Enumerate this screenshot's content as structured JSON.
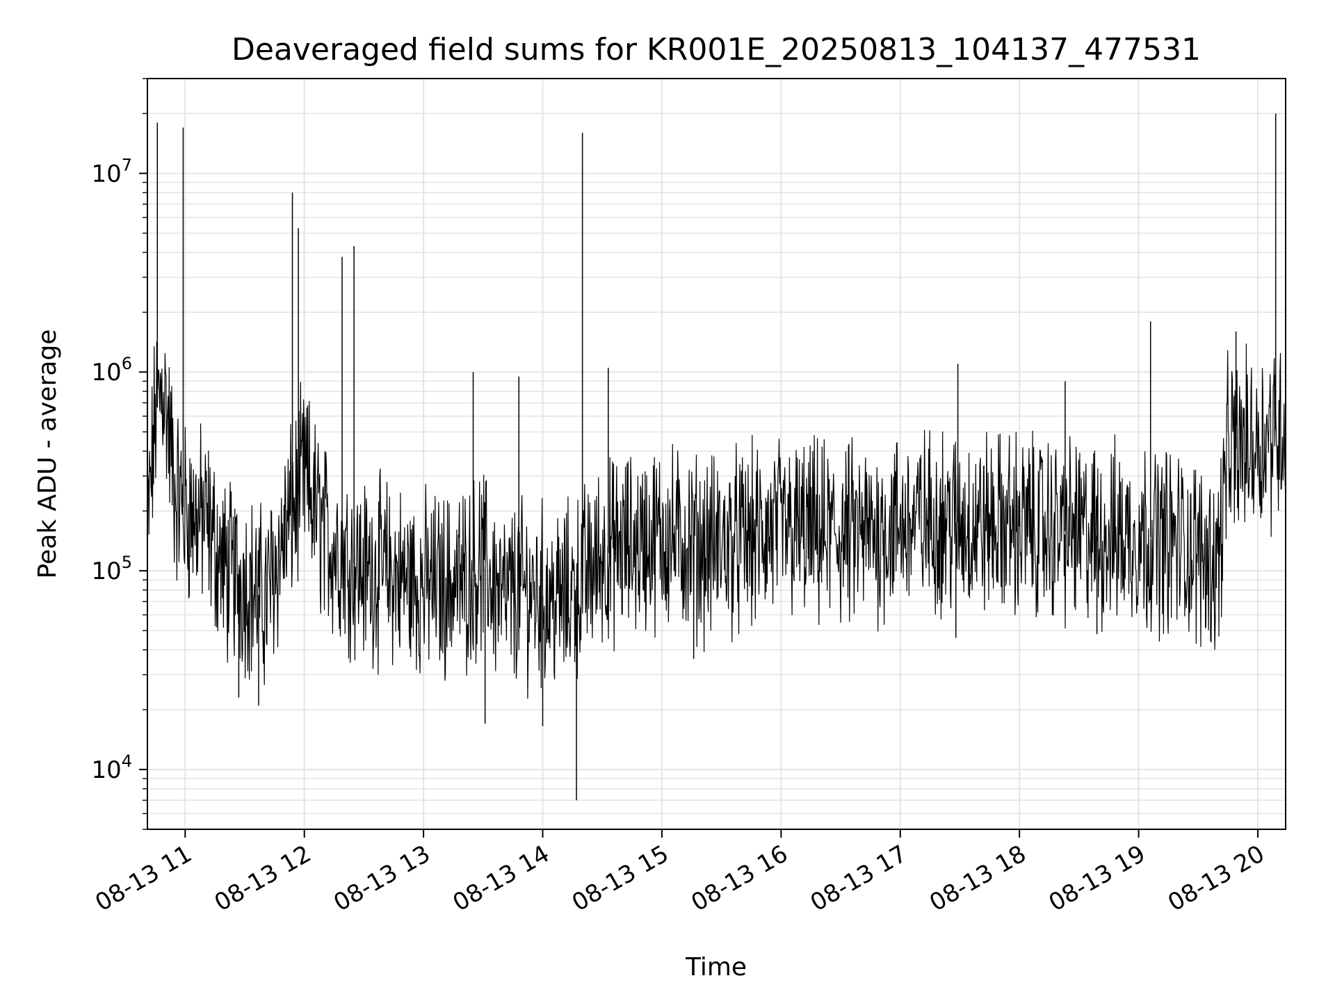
{
  "chart_data": {
    "type": "line",
    "title": "Deaveraged field sums for KR001E_20250813_104137_477531",
    "xlabel": "Time",
    "ylabel": "Peak ADU - average",
    "yscale": "log",
    "ylim": [
      5000,
      30000000
    ],
    "xlim": [
      "2025-08-13 10:41",
      "2025-08-13 20:14"
    ],
    "x_ticks": [
      "08-13 11",
      "08-13 12",
      "08-13 13",
      "08-13 14",
      "08-13 15",
      "08-13 16",
      "08-13 17",
      "08-13 18",
      "08-13 19",
      "08-13 20"
    ],
    "y_ticks": [
      {
        "base": "10",
        "exp": "4",
        "value": 10000
      },
      {
        "base": "10",
        "exp": "5",
        "value": 100000
      },
      {
        "base": "10",
        "exp": "6",
        "value": 1000000
      },
      {
        "base": "10",
        "exp": "7",
        "value": 10000000
      }
    ],
    "grid": true,
    "line_color": "#000000",
    "series": [
      {
        "points": [
          [
            "2025-08-13 10:41",
            150000
          ],
          [
            "2025-08-13 10:45",
            600000
          ],
          [
            "2025-08-13 10:49",
            900000
          ],
          [
            "2025-08-13 10:55",
            250000
          ],
          [
            "2025-08-13 11:00",
            200000
          ],
          [
            "2025-08-13 11:10",
            180000
          ],
          [
            "2025-08-13 11:20",
            100000
          ],
          [
            "2025-08-13 11:30",
            90000
          ],
          [
            "2025-08-13 11:40",
            70000
          ],
          [
            "2025-08-13 11:50",
            150000
          ],
          [
            "2025-08-13 12:00",
            300000
          ],
          [
            "2025-08-13 12:10",
            150000
          ],
          [
            "2025-08-13 12:20",
            120000
          ],
          [
            "2025-08-13 12:30",
            100000
          ],
          [
            "2025-08-13 12:40",
            100000
          ],
          [
            "2025-08-13 12:50",
            90000
          ],
          [
            "2025-08-13 13:00",
            85000
          ],
          [
            "2025-08-13 13:10",
            85000
          ],
          [
            "2025-08-13 13:20",
            90000
          ],
          [
            "2025-08-13 13:30",
            110000
          ],
          [
            "2025-08-13 13:40",
            70000
          ],
          [
            "2025-08-13 13:50",
            80000
          ],
          [
            "2025-08-13 14:00",
            75000
          ],
          [
            "2025-08-13 14:10",
            70000
          ],
          [
            "2025-08-13 14:20",
            90000
          ],
          [
            "2025-08-13 14:30",
            120000
          ],
          [
            "2025-08-13 14:40",
            130000
          ],
          [
            "2025-08-13 14:50",
            140000
          ],
          [
            "2025-08-13 15:00",
            150000
          ],
          [
            "2025-08-13 15:20",
            130000
          ],
          [
            "2025-08-13 15:40",
            140000
          ],
          [
            "2025-08-13 16:00",
            160000
          ],
          [
            "2025-08-13 16:20",
            150000
          ],
          [
            "2025-08-13 16:40",
            150000
          ],
          [
            "2025-08-13 17:00",
            170000
          ],
          [
            "2025-08-13 17:20",
            180000
          ],
          [
            "2025-08-13 17:40",
            170000
          ],
          [
            "2025-08-13 18:00",
            170000
          ],
          [
            "2025-08-13 18:20",
            160000
          ],
          [
            "2025-08-13 18:40",
            150000
          ],
          [
            "2025-08-13 19:00",
            150000
          ],
          [
            "2025-08-13 19:20",
            140000
          ],
          [
            "2025-08-13 19:40",
            110000
          ],
          [
            "2025-08-13 19:45",
            400000
          ],
          [
            "2025-08-13 20:00",
            450000
          ],
          [
            "2025-08-13 20:14",
            550000
          ]
        ],
        "spikes": [
          [
            "2025-08-13 10:46",
            18000000
          ],
          [
            "2025-08-13 10:59",
            17000000
          ],
          [
            "2025-08-13 11:54",
            8000000
          ],
          [
            "2025-08-13 11:57",
            5300000
          ],
          [
            "2025-08-13 12:19",
            3800000
          ],
          [
            "2025-08-13 12:25",
            4300000
          ],
          [
            "2025-08-13 13:25",
            1000000
          ],
          [
            "2025-08-13 13:48",
            950000
          ],
          [
            "2025-08-13 14:20",
            16000000
          ],
          [
            "2025-08-13 14:33",
            1050000
          ],
          [
            "2025-08-13 17:29",
            1100000
          ],
          [
            "2025-08-13 18:23",
            900000
          ],
          [
            "2025-08-13 19:06",
            1800000
          ],
          [
            "2025-08-13 19:49",
            1600000
          ],
          [
            "2025-08-13 20:09",
            20000000
          ]
        ],
        "dips": [
          [
            "2025-08-13 11:27",
            23000
          ],
          [
            "2025-08-13 11:37",
            21000
          ],
          [
            "2025-08-13 13:31",
            17000
          ],
          [
            "2025-08-13 14:00",
            16500
          ],
          [
            "2025-08-13 14:17",
            7000
          ],
          [
            "2025-08-13 15:16",
            36000
          ],
          [
            "2025-08-13 17:28",
            46000
          ],
          [
            "2025-08-13 18:39",
            48000
          ]
        ]
      }
    ]
  }
}
